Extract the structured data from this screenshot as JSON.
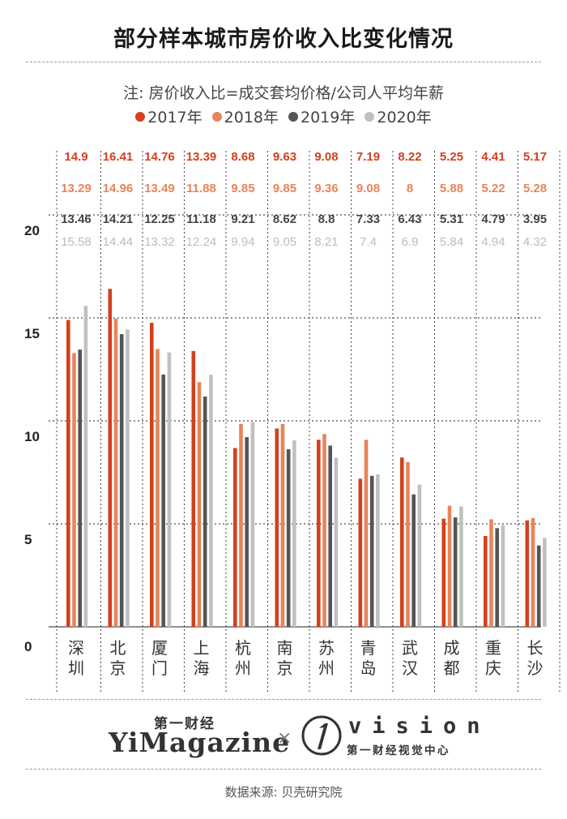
{
  "title": "部分样本城市房价收入比变化情况",
  "subtitle": "注: 房价收入比=成交套均价格/公司人平均年薪",
  "colors": {
    "2017年": "#d4401d",
    "2018年": "#e8845a",
    "2019年": "#555555",
    "2020年": "#c0c0c0"
  },
  "chart_data": {
    "type": "bar",
    "title": "部分样本城市房价收入比变化情况",
    "categories": [
      "深圳",
      "北京",
      "厦门",
      "上海",
      "杭州",
      "南京",
      "苏州",
      "青岛",
      "武汉",
      "成都",
      "重庆",
      "长沙"
    ],
    "series": [
      {
        "name": "2017年",
        "values": [
          14.9,
          16.41,
          14.76,
          13.39,
          8.68,
          9.63,
          9.08,
          7.19,
          8.22,
          5.25,
          4.41,
          5.17
        ]
      },
      {
        "name": "2018年",
        "values": [
          13.29,
          14.96,
          13.49,
          11.88,
          9.85,
          9.85,
          9.36,
          9.08,
          8,
          5.88,
          5.22,
          5.28
        ]
      },
      {
        "name": "2019年",
        "values": [
          13.46,
          14.21,
          12.25,
          11.18,
          9.21,
          8.62,
          8.8,
          7.33,
          6.43,
          5.31,
          4.79,
          3.95
        ]
      },
      {
        "name": "2020年",
        "values": [
          15.58,
          14.44,
          13.32,
          12.24,
          9.94,
          9.05,
          8.21,
          7.4,
          6.9,
          5.84,
          4.94,
          4.32
        ]
      }
    ],
    "value_labels": [
      [
        "14.9",
        "16.41",
        "14.76",
        "13.39",
        "8.68",
        "9.63",
        "9.08",
        "7.19",
        "8.22",
        "5.25",
        "4.41",
        "5.17"
      ],
      [
        "13.29",
        "14.96",
        "13.49",
        "11.88",
        "9.85",
        "9.85",
        "9.36",
        "9.08",
        "8",
        "5.88",
        "5.22",
        "5.28"
      ],
      [
        "13.46",
        "14.21",
        "12.25",
        "11.18",
        "9.21",
        "8.62",
        "8.8",
        "7.33",
        "6.43",
        "5.31",
        "4.79",
        "3.95"
      ],
      [
        "15.58",
        "14.44",
        "13.32",
        "12.24",
        "9.94",
        "9.05",
        "8.21",
        "7.4",
        "6.9",
        "5.84",
        "4.94",
        "4.32"
      ]
    ],
    "yticks": [
      "0",
      "5",
      "10",
      "15",
      "20"
    ],
    "ylim": [
      0,
      20
    ],
    "grid": true,
    "legend_position": "top"
  },
  "logos": {
    "yimagazine_cn": "第一财经",
    "yimagazine_en": "YiMagazine",
    "separator": "×",
    "vision_en": "vision",
    "vision_cn": "第一财经视觉中心"
  },
  "source": "数据来源: 贝壳研究院"
}
